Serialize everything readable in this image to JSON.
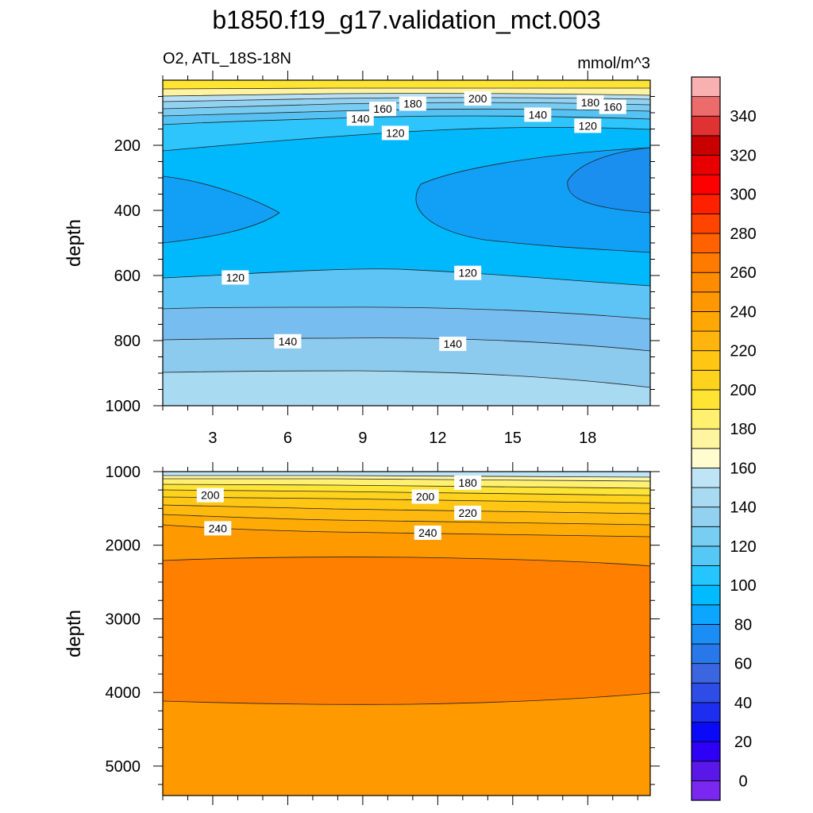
{
  "title": "b1850.f19_g17.validation_mct.003",
  "chart_data": [
    {
      "type": "contour",
      "subtitle_left": "O2, ATL_18S-18N",
      "subtitle_right": "mmol/m^3",
      "ylabel": "depth",
      "xlim": [
        1,
        20.5
      ],
      "ylim": [
        1000,
        0
      ],
      "x_ticks": [
        "3",
        "6",
        "9",
        "12",
        "15",
        "18"
      ],
      "x_tick_values": [
        3,
        6,
        9,
        12,
        15,
        18
      ],
      "y_ticks": [
        "200",
        "400",
        "600",
        "800",
        "1000"
      ],
      "y_tick_values": [
        200,
        400,
        600,
        800,
        1000
      ],
      "contour_labels": [
        {
          "text": "200",
          "x": 13.6,
          "y": 56
        },
        {
          "text": "180",
          "x": 11.0,
          "y": 72
        },
        {
          "text": "160",
          "x": 9.8,
          "y": 88
        },
        {
          "text": "140",
          "x": 8.9,
          "y": 118
        },
        {
          "text": "120",
          "x": 10.3,
          "y": 162
        },
        {
          "text": "180",
          "x": 18.1,
          "y": 68
        },
        {
          "text": "160",
          "x": 19.0,
          "y": 82
        },
        {
          "text": "140",
          "x": 16.0,
          "y": 106
        },
        {
          "text": "120",
          "x": 18.0,
          "y": 140
        },
        {
          "text": "120",
          "x": 3.9,
          "y": 606
        },
        {
          "text": "120",
          "x": 13.2,
          "y": 592
        },
        {
          "text": "140",
          "x": 6.0,
          "y": 802
        },
        {
          "text": "140",
          "x": 12.6,
          "y": 810
        }
      ]
    },
    {
      "type": "contour",
      "ylabel": "depth",
      "xlim": [
        1,
        20.5
      ],
      "ylim": [
        5400,
        1000
      ],
      "x_tick_values": [
        3,
        6,
        9,
        12,
        15,
        18
      ],
      "y_ticks": [
        "1000",
        "2000",
        "3000",
        "4000",
        "5000"
      ],
      "y_tick_values": [
        1000,
        2000,
        3000,
        4000,
        5000
      ],
      "contour_labels": [
        {
          "text": "180",
          "x": 13.2,
          "y": 1150
        },
        {
          "text": "200",
          "x": 2.9,
          "y": 1320
        },
        {
          "text": "200",
          "x": 11.5,
          "y": 1340
        },
        {
          "text": "220",
          "x": 13.2,
          "y": 1560
        },
        {
          "text": "240",
          "x": 3.2,
          "y": 1770
        },
        {
          "text": "240",
          "x": 11.6,
          "y": 1830
        }
      ]
    }
  ],
  "colorbar": {
    "tick_labels": [
      "0",
      "20",
      "40",
      "60",
      "80",
      "100",
      "120",
      "140",
      "160",
      "180",
      "200",
      "220",
      "240",
      "260",
      "280",
      "300",
      "320",
      "340"
    ],
    "colors": [
      "#7a28f0",
      "#5a18e8",
      "#2e00f5",
      "#0a0af8",
      "#1d2ef0",
      "#2e4ce6",
      "#3a66e0",
      "#2878ea",
      "#1a8ef5",
      "#0da6ff",
      "#00bbff",
      "#25c5ff",
      "#55c8f5",
      "#78cdf2",
      "#92d2f0",
      "#a8dbf2",
      "#bfe4f5",
      "#fffcd0",
      "#fff4a0",
      "#fff070",
      "#ffe433",
      "#ffd21e",
      "#ffc614",
      "#ffb50e",
      "#ffa705",
      "#ff9800",
      "#ff8c00",
      "#ff7b00",
      "#ff6200",
      "#ff4400",
      "#ff2000",
      "#ff0000",
      "#e80000",
      "#c80000",
      "#e03232",
      "#ec6b6b",
      "#f8b0b0"
    ]
  }
}
